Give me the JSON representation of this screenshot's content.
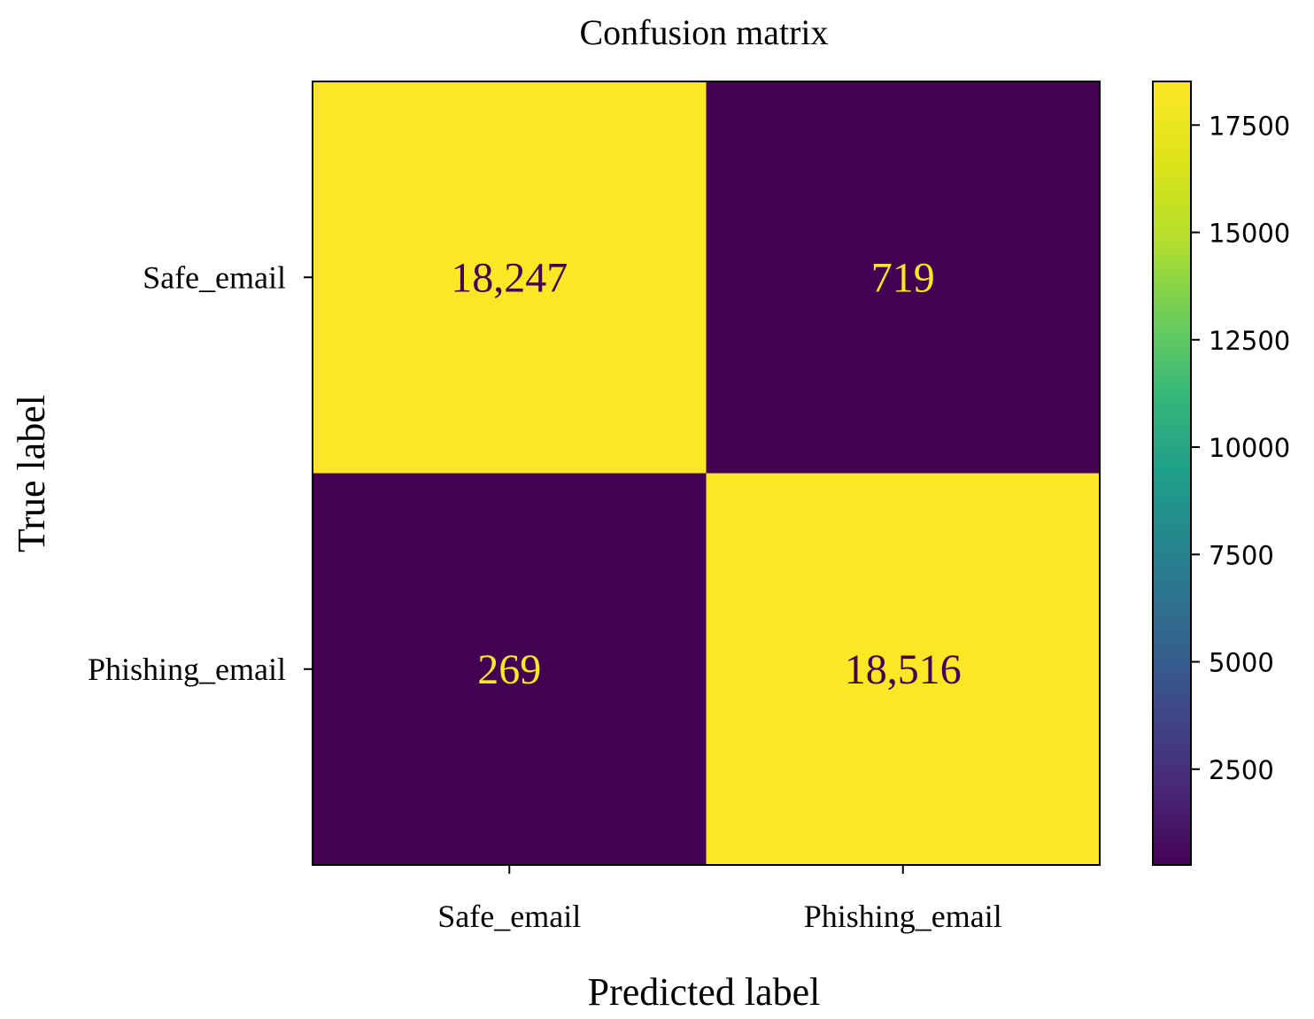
{
  "chart_data": {
    "type": "heatmap",
    "title": "Confusion matrix",
    "xlabel": "Predicted label",
    "ylabel": "True label",
    "x_categories": [
      "Safe_email",
      "Phishing_email"
    ],
    "y_categories": [
      "Safe_email",
      "Phishing_email"
    ],
    "matrix": [
      [
        18247,
        719
      ],
      [
        269,
        18516
      ]
    ],
    "cell_labels": [
      [
        "18,247",
        "719"
      ],
      [
        "269",
        "18,516"
      ]
    ],
    "colormap": "viridis",
    "colorbar": {
      "min": 269,
      "max": 18516,
      "ticks": [
        2500,
        5000,
        7500,
        10000,
        12500,
        15000,
        17500
      ],
      "tick_labels": [
        "2500",
        "5000",
        "7500",
        "10000",
        "12500",
        "15000",
        "17500"
      ]
    },
    "colors": {
      "low": "#440154",
      "high": "#fde725",
      "low_text": "#fde725",
      "high_text": "#440154"
    }
  }
}
